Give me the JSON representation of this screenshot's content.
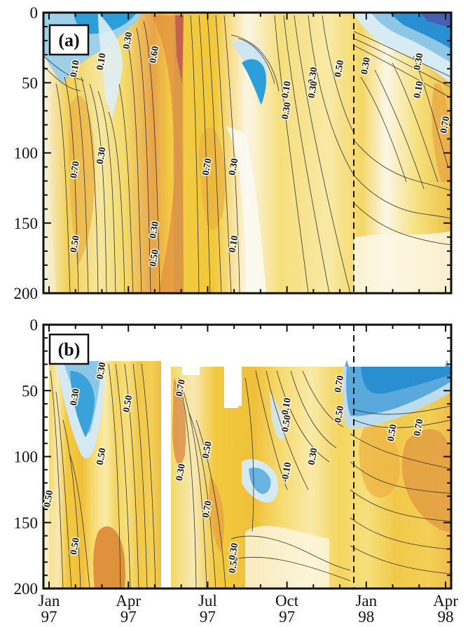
{
  "chart_data": [
    {
      "panel": "(a)",
      "type": "heatmap",
      "title": "",
      "xlabel": "",
      "ylabel": "",
      "ylim": [
        0,
        200
      ],
      "y_inverted": true,
      "yticks": [
        0,
        50,
        100,
        150,
        200
      ],
      "xlim": [
        "Jan 97",
        "Apr 98"
      ],
      "x_tick_labels": [
        [
          "Jan",
          "97"
        ],
        [
          "Apr",
          "97"
        ],
        [
          "Jul",
          "97"
        ],
        [
          "Oct",
          "97"
        ],
        [
          "Jan",
          "98"
        ],
        [
          "Apr",
          "98"
        ]
      ],
      "dashed_line_x": "Jan 98",
      "colormap": [
        "#2a9ad5",
        "#8cc7e8",
        "#e7f1f5",
        "#fbf7dd",
        "#f6e07a",
        "#f2c21d",
        "#e89a3a",
        "#d67a3a",
        "#b7334e"
      ],
      "contour_labels": [
        {
          "text": "0.10",
          "x": "Feb 97",
          "y": 40
        },
        {
          "text": "0.10",
          "x": "Mar 97",
          "y": 35
        },
        {
          "text": "0.30",
          "x": "Apr 97",
          "y": 20
        },
        {
          "text": "0.60",
          "x": "May 97",
          "y": 30
        },
        {
          "text": "0.70",
          "x": "Feb 97",
          "y": 112
        },
        {
          "text": "0.30",
          "x": "Mar 97",
          "y": 102
        },
        {
          "text": "0.50",
          "x": "Feb 97",
          "y": 165
        },
        {
          "text": "0.30",
          "x": "May 97",
          "y": 155
        },
        {
          "text": "0.50",
          "x": "May 97",
          "y": 175
        },
        {
          "text": "0.70",
          "x": "Jul 97",
          "y": 110
        },
        {
          "text": "0.30",
          "x": "Aug 97",
          "y": 110
        },
        {
          "text": "0.10",
          "x": "Aug 97",
          "y": 165
        },
        {
          "text": "0.10",
          "x": "Oct 97",
          "y": 55
        },
        {
          "text": "0.30",
          "x": "Oct 97",
          "y": 70
        },
        {
          "text": "0.30",
          "x": "Nov 97",
          "y": 45
        },
        {
          "text": "0.30",
          "x": "Nov 97",
          "y": 55
        },
        {
          "text": "0.50",
          "x": "Dec 97",
          "y": 40
        },
        {
          "text": "0.30",
          "x": "Jan 98",
          "y": 38
        },
        {
          "text": "0.30",
          "x": "Mar 98",
          "y": 35
        },
        {
          "text": "0.10",
          "x": "Mar 98",
          "y": 55
        },
        {
          "text": "0.70",
          "x": "Apr 98",
          "y": 80
        }
      ]
    },
    {
      "panel": "(b)",
      "type": "heatmap",
      "title": "",
      "xlabel": "",
      "ylabel": "",
      "ylim": [
        0,
        200
      ],
      "y_inverted": true,
      "yticks": [
        0,
        50,
        100,
        150,
        200
      ],
      "xlim": [
        "Jan 97",
        "Apr 98"
      ],
      "x_tick_labels": [
        [
          "Jan",
          "97"
        ],
        [
          "Apr",
          "97"
        ],
        [
          "Jul",
          "97"
        ],
        [
          "Oct",
          "97"
        ],
        [
          "Jan",
          "98"
        ],
        [
          "Apr",
          "98"
        ]
      ],
      "dashed_line_x": "Jan 98",
      "data_gap": [
        "May 97",
        "May 97"
      ],
      "contour_labels": [
        {
          "text": "0.30",
          "x": "Feb 97",
          "y": 55
        },
        {
          "text": "0.30",
          "x": "Mar 97",
          "y": 35
        },
        {
          "text": "0.50",
          "x": "Apr 97",
          "y": 60
        },
        {
          "text": "0.50",
          "x": "Mar 97",
          "y": 100
        },
        {
          "text": "0.50",
          "x": "Jan 97",
          "y": 132
        },
        {
          "text": "0.50",
          "x": "Feb 97",
          "y": 168
        },
        {
          "text": "0.70",
          "x": "Jun 97",
          "y": 48
        },
        {
          "text": "0.50",
          "x": "Jul 97",
          "y": 95
        },
        {
          "text": "0.30",
          "x": "Jun 97",
          "y": 112
        },
        {
          "text": "0.70",
          "x": "Jul 97",
          "y": 140
        },
        {
          "text": "0.50",
          "x": "Aug 97",
          "y": 182
        },
        {
          "text": "0.30",
          "x": "Aug 97",
          "y": 172
        },
        {
          "text": "0.10",
          "x": "Oct 97",
          "y": 62
        },
        {
          "text": "0.50",
          "x": "Oct 97",
          "y": 75
        },
        {
          "text": "-0.10",
          "x": "Oct 97",
          "y": 112
        },
        {
          "text": "0.30",
          "x": "Nov 97",
          "y": 100
        },
        {
          "text": "0.70",
          "x": "Dec 97",
          "y": 45
        },
        {
          "text": "0.50",
          "x": "Dec 97",
          "y": 68
        },
        {
          "text": "0.50",
          "x": "Feb 98",
          "y": 82
        },
        {
          "text": "0.70",
          "x": "Mar 98",
          "y": 78
        }
      ]
    }
  ]
}
